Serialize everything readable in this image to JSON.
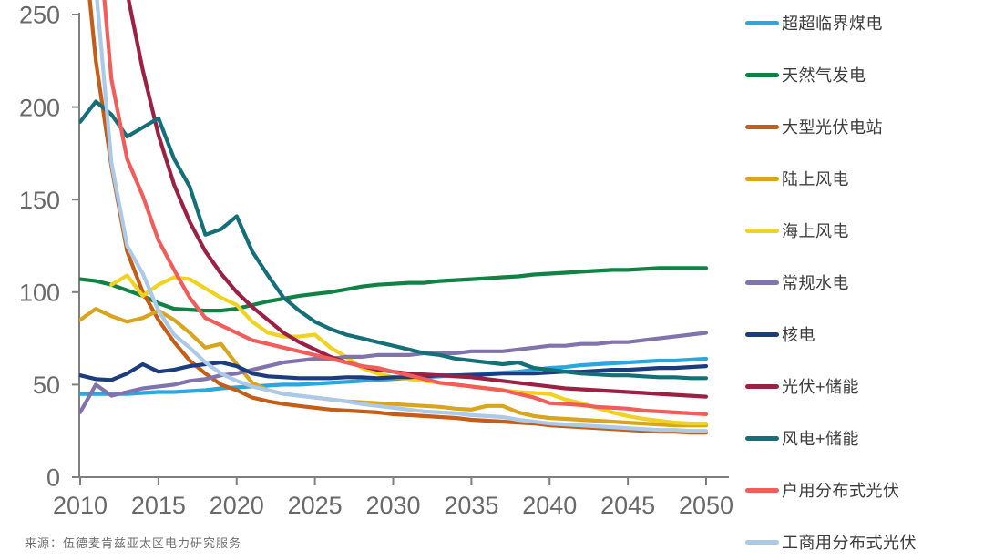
{
  "source_note": "来源：伍德麦肯兹亚太区电力研究服务",
  "colors": {
    "background": "#ffffff",
    "axis": "#7f7f7f",
    "tick_label": "#696969",
    "legend_text": "#3d3d3d",
    "source_text": "#6f6f6f"
  },
  "chart_data": {
    "type": "line",
    "title": "",
    "xlabel": "",
    "ylabel": "",
    "grid": false,
    "legend_position": "right",
    "x_axis": {
      "min": 2010,
      "max": 2050,
      "ticks": [
        2010,
        2015,
        2020,
        2025,
        2030,
        2035,
        2040,
        2045,
        2050
      ]
    },
    "y_axis": {
      "min": 0,
      "max": 250,
      "ticks": [
        0,
        50,
        100,
        150,
        200,
        250
      ]
    },
    "years": [
      2010,
      2011,
      2012,
      2013,
      2014,
      2015,
      2016,
      2017,
      2018,
      2019,
      2020,
      2021,
      2022,
      2023,
      2024,
      2025,
      2026,
      2027,
      2028,
      2029,
      2030,
      2031,
      2032,
      2033,
      2034,
      2035,
      2036,
      2037,
      2038,
      2039,
      2040,
      2041,
      2042,
      2043,
      2044,
      2045,
      2046,
      2047,
      2048,
      2049,
      2050
    ],
    "series": [
      {
        "id": "coal-usc",
        "name": "超超临界煤电",
        "color": "#2AA7DF",
        "values": [
          45,
          45,
          45,
          45,
          45.5,
          46,
          46,
          46.5,
          47,
          48,
          48.5,
          49,
          49.5,
          50,
          50,
          50.5,
          51,
          51.5,
          52,
          52.5,
          53,
          53.5,
          54,
          54.5,
          55,
          55.5,
          56,
          56.5,
          57,
          58,
          59,
          59.5,
          60.5,
          61,
          61.5,
          62,
          62.5,
          63,
          63,
          63.5,
          64
        ]
      },
      {
        "id": "gas",
        "name": "天然气发电",
        "color": "#108243",
        "values": [
          107,
          106,
          104,
          101,
          98,
          94,
          91,
          90.5,
          90,
          90,
          91,
          93,
          95,
          96.5,
          98,
          99,
          100,
          101.5,
          103,
          104,
          104.5,
          105,
          105,
          106,
          106.5,
          107,
          107.5,
          108,
          108.5,
          109.5,
          110,
          110.5,
          111,
          111.5,
          112,
          112,
          112.5,
          113,
          113,
          113,
          113
        ]
      },
      {
        "id": "utility-pv",
        "name": "大型光伏电站",
        "color": "#C55D17",
        "values": [
          310,
          225,
          168,
          122,
          100,
          85,
          73,
          63,
          56,
          50,
          47,
          43,
          41,
          39.5,
          38.5,
          37.5,
          36.5,
          36,
          35.5,
          35,
          34,
          33.5,
          33,
          32.5,
          32,
          31,
          30.5,
          30,
          29.5,
          29,
          28,
          27.5,
          27,
          26.5,
          26,
          25.5,
          25,
          24.5,
          24.5,
          24,
          24
        ]
      },
      {
        "id": "onshore-wind",
        "name": "陆上风电",
        "color": "#D9A41E",
        "values": [
          85,
          91,
          87,
          84,
          86,
          90,
          85,
          78,
          70,
          72,
          61,
          51,
          47,
          45,
          44,
          43,
          42,
          41,
          40.5,
          40,
          39.5,
          39,
          38.5,
          38,
          37,
          36.5,
          38.5,
          38.5,
          35,
          33,
          32,
          31.5,
          31,
          30.5,
          30,
          29.5,
          29,
          28.5,
          28,
          28,
          28
        ]
      },
      {
        "id": "offshore-wind",
        "name": "海上风电",
        "color": "#EFD320",
        "values": [
          null,
          null,
          104,
          109,
          98,
          104,
          108,
          107,
          102,
          97,
          93,
          84,
          78,
          76,
          76,
          77,
          70,
          65,
          59,
          56,
          54,
          53,
          52,
          51,
          50,
          49,
          48,
          47,
          46,
          45.5,
          45,
          42,
          40,
          37.5,
          35,
          33,
          31.5,
          30.5,
          29.5,
          29,
          29
        ]
      },
      {
        "id": "hydro",
        "name": "常规水电",
        "color": "#8173AC",
        "values": [
          35,
          50,
          44,
          46,
          48,
          49,
          50,
          52,
          53,
          55,
          56,
          58,
          60,
          62,
          63,
          64,
          64,
          65,
          65,
          66,
          66,
          66,
          67,
          67,
          67,
          68,
          68,
          68,
          69,
          70,
          71,
          71,
          72,
          72,
          73,
          73,
          74,
          75,
          76,
          77,
          78
        ]
      },
      {
        "id": "nuclear",
        "name": "核电",
        "color": "#1B3C7E",
        "values": [
          55,
          53,
          52.5,
          56,
          61,
          57,
          58,
          60,
          61,
          62,
          60,
          56,
          54.5,
          54,
          53.5,
          53.5,
          53.5,
          54,
          54,
          53.5,
          54,
          54,
          54.5,
          55,
          55,
          55,
          55.5,
          56,
          56,
          56,
          56.5,
          57,
          57,
          57.5,
          58,
          58,
          58.5,
          59,
          59,
          59.5,
          60
        ]
      },
      {
        "id": "pv-storage",
        "name": "光伏+储能",
        "color": "#9B2144",
        "values": [
          330,
          300,
          270,
          262,
          220,
          185,
          158,
          138,
          122,
          110,
          100,
          92,
          85,
          78,
          73,
          69,
          65,
          62,
          60,
          58,
          57,
          56,
          55.5,
          55,
          54.5,
          54,
          53,
          52,
          51,
          50,
          49,
          48,
          47.5,
          47,
          46.5,
          46,
          45.5,
          45,
          44.5,
          44,
          43.5
        ]
      },
      {
        "id": "wind-storage",
        "name": "风电+储能",
        "color": "#146F78",
        "values": [
          192,
          203,
          196,
          184,
          189,
          194,
          172,
          157,
          131,
          134,
          141,
          122,
          109,
          97,
          90,
          84,
          80,
          77,
          75,
          73,
          71,
          69,
          67,
          66,
          64,
          63,
          62,
          61,
          62,
          59,
          58,
          57,
          56,
          55.5,
          55,
          55,
          54.5,
          54,
          54,
          53.5,
          53.5
        ]
      },
      {
        "id": "residential-pv",
        "name": "户用分布式光伏",
        "color": "#F15D5B",
        "values": [
          380,
          310,
          215,
          172,
          152,
          128,
          112,
          97,
          86,
          82,
          78,
          74,
          72,
          70,
          68,
          66,
          64,
          62,
          60,
          59,
          57,
          55,
          53,
          51,
          50,
          49,
          48,
          47,
          45,
          43,
          40,
          39.5,
          39,
          38,
          37.5,
          37,
          36,
          35.5,
          35,
          34.5,
          34
        ]
      },
      {
        "id": "ci-pv",
        "name": "工商用分布式光伏",
        "color": "#ABC9E8",
        "values": [
          400,
          265,
          170,
          125,
          110,
          90,
          77,
          70,
          62,
          56,
          52,
          49,
          47,
          45,
          44,
          43,
          42,
          41,
          39.5,
          38.5,
          37.5,
          36.5,
          35.5,
          35,
          34.5,
          33.5,
          33,
          32.5,
          31,
          30,
          29,
          28.5,
          28,
          27.5,
          27,
          26.5,
          26,
          25.5,
          25.5,
          25,
          25
        ]
      }
    ]
  }
}
